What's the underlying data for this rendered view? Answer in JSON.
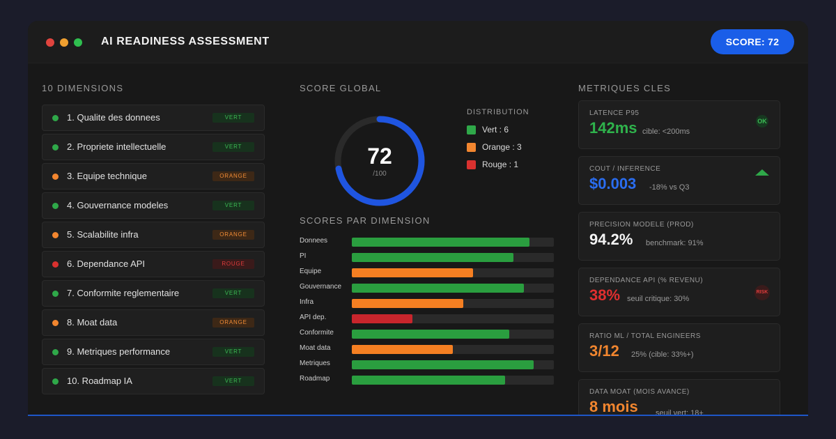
{
  "window": {
    "title": "AI READINESS ASSESSMENT",
    "score_badge": "SCORE: 72"
  },
  "dimensions": {
    "title": "10 DIMENSIONS",
    "items": [
      {
        "label": "1. Qualite des donnees",
        "status": "VERT",
        "color": "#2fa849"
      },
      {
        "label": "2. Propriete intellectuelle",
        "status": "VERT",
        "color": "#2fa849"
      },
      {
        "label": "3. Equipe technique",
        "status": "ORANGE",
        "color": "#f2862f"
      },
      {
        "label": "4. Gouvernance modeles",
        "status": "VERT",
        "color": "#2fa849"
      },
      {
        "label": "5. Scalabilite infra",
        "status": "ORANGE",
        "color": "#f2862f"
      },
      {
        "label": "6. Dependance API",
        "status": "ROUGE",
        "color": "#d9312f"
      },
      {
        "label": "7. Conformite reglementaire",
        "status": "VERT",
        "color": "#2fa849"
      },
      {
        "label": "8. Moat data",
        "status": "ORANGE",
        "color": "#f2862f"
      },
      {
        "label": "9. Metriques performance",
        "status": "VERT",
        "color": "#2fa849"
      },
      {
        "label": "10. Roadmap IA",
        "status": "VERT",
        "color": "#2fa849"
      }
    ]
  },
  "score_global": {
    "title": "SCORE GLOBAL",
    "value": "72",
    "max": "/100",
    "fraction": 0.72,
    "distribution": {
      "title": "DISTRIBUTION",
      "items": [
        {
          "label": "Vert : 6",
          "color": "#2fa849"
        },
        {
          "label": "Orange : 3",
          "color": "#f2862f"
        },
        {
          "label": "Rouge : 1",
          "color": "#d9312f"
        }
      ]
    }
  },
  "scores_par_dimension": {
    "title": "SCORES PAR DIMENSION",
    "chart_data": {
      "type": "bar",
      "categories": [
        "Donnees",
        "PI",
        "Equipe",
        "Gouvernance",
        "Infra",
        "API dep.",
        "Conformite",
        "Moat data",
        "Metriques",
        "Roadmap"
      ],
      "values": [
        88,
        80,
        60,
        85,
        55,
        30,
        78,
        50,
        90,
        76
      ],
      "status": [
        "vert",
        "vert",
        "orange",
        "vert",
        "orange",
        "rouge",
        "vert",
        "orange",
        "vert",
        "vert"
      ],
      "ylim": [
        0,
        100
      ]
    }
  },
  "metriques": {
    "title": "METRIQUES CLES",
    "cards": [
      {
        "label": "LATENCE P95",
        "value": "142ms",
        "note": "cible: <200ms",
        "badge": "OK"
      },
      {
        "label": "COUT / INFERENCE",
        "value": "$0.003",
        "note": "-18% vs Q3",
        "badge": ""
      },
      {
        "label": "PRECISION MODELE (PROD)",
        "value": "94.2%",
        "note": "benchmark: 91%",
        "badge": ""
      },
      {
        "label": "DEPENDANCE API (% REVENU)",
        "value": "38%",
        "note": "seuil critique: 30%",
        "badge": "RISK"
      },
      {
        "label": "RATIO ML / TOTAL ENGINEERS",
        "value": "3/12",
        "note": "25% (cible: 33%+)",
        "badge": ""
      },
      {
        "label": "DATA MOAT (MOIS AVANCE)",
        "value": "8 mois",
        "note": "seuil vert: 18+",
        "badge": ""
      }
    ]
  }
}
